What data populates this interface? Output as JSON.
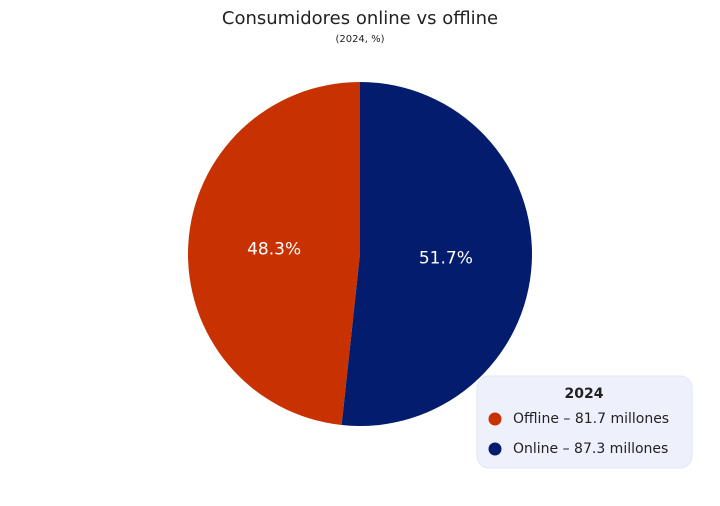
{
  "chart_data": {
    "type": "pie",
    "title": "Consumidores online vs offline",
    "subtitle": "(2024, %)",
    "legend_title": "2024",
    "categories": [
      "Offline – 81.7 millones",
      "Online – 87.3 millones"
    ],
    "values": [
      48.3,
      51.7
    ],
    "value_labels": [
      "48.3%",
      "51.7%"
    ],
    "colors": [
      "#c83200",
      "#031c6e"
    ],
    "legend": "bottom-right"
  }
}
